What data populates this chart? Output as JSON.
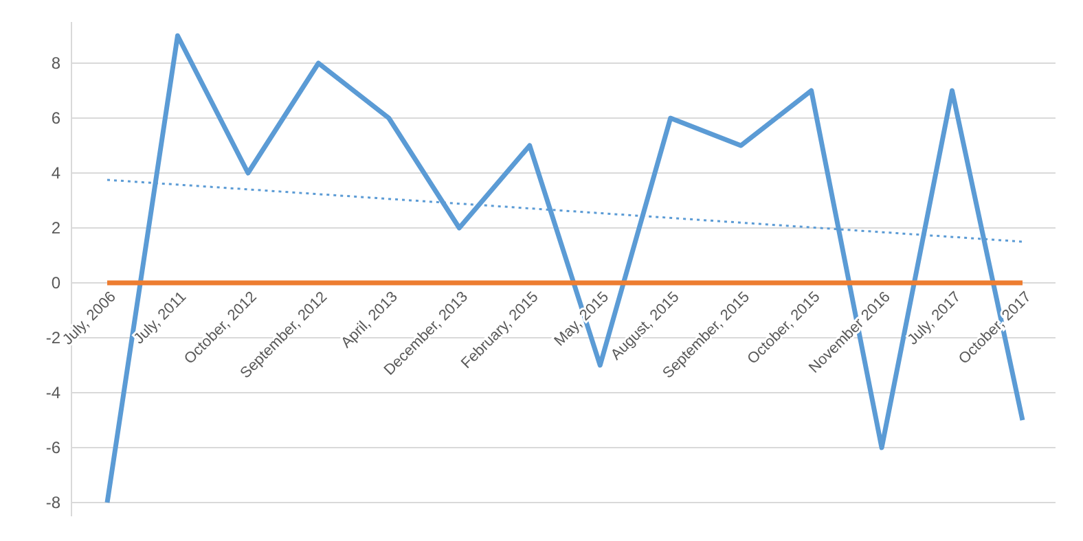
{
  "chart_data": {
    "type": "line",
    "categories": [
      "July, 2006",
      "July, 2011",
      "October, 2012",
      "September, 2012",
      "April, 2013",
      "December, 2013",
      "February, 2015",
      "May, 2015",
      "August, 2015",
      "September, 2015",
      "October, 2015",
      "November 2016",
      "July, 2017",
      "October, 2017"
    ],
    "series": [
      {
        "color": "#5b9bd5",
        "values": [
          -8,
          9,
          4,
          8,
          6,
          2,
          5,
          -3,
          6,
          5,
          7,
          -6,
          7,
          -5
        ]
      },
      {
        "color": "#ed7d31",
        "values": [
          0,
          0,
          0,
          0,
          0,
          0,
          0,
          0,
          0,
          0,
          0,
          0,
          0,
          0
        ]
      },
      {
        "type": "line",
        "color": "#5b9bd5",
        "line_style": "dotted",
        "x": [
          "July, 2006",
          "October, 2017"
        ],
        "values": [
          3.75,
          1.5
        ]
      }
    ],
    "ylim": [
      -8.5,
      9.5
    ],
    "yticks": [
      -8,
      -6,
      -4,
      -2,
      0,
      2,
      4,
      6,
      8
    ],
    "grid": "y",
    "marker": "none",
    "line_style": "solid"
  }
}
